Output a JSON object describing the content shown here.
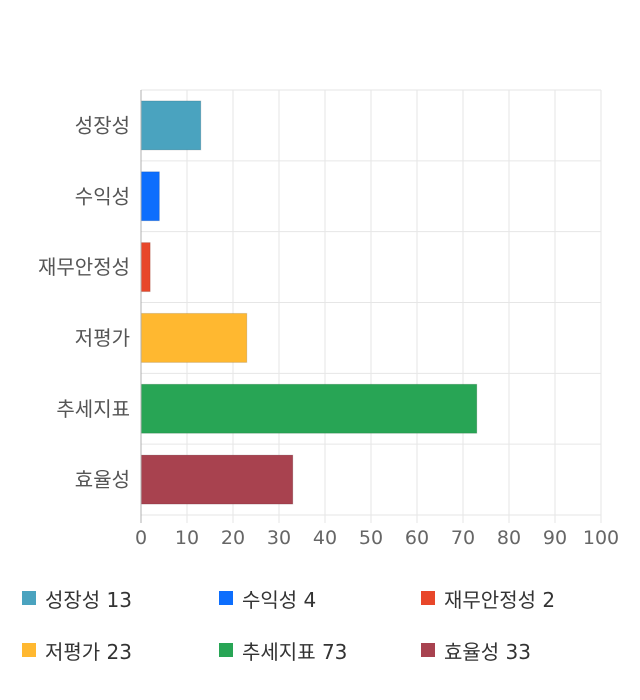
{
  "chart_data": {
    "type": "bar",
    "orientation": "horizontal",
    "categories": [
      "성장성",
      "수익성",
      "재무안정성",
      "저평가",
      "추세지표",
      "효율성"
    ],
    "values": [
      13,
      4,
      2,
      23,
      73,
      33
    ],
    "colors": [
      "#4aa3bf",
      "#0d6efd",
      "#e8472a",
      "#ffb830",
      "#28a555",
      "#a8424f"
    ],
    "xlim": [
      0,
      100
    ],
    "xticks": [
      0,
      10,
      20,
      30,
      40,
      50,
      60,
      70,
      80,
      90,
      100
    ],
    "grid": true,
    "legend_position": "bottom"
  },
  "legend": [
    {
      "label": "성장성 13",
      "color": "#4aa3bf"
    },
    {
      "label": "수익성 4",
      "color": "#0d6efd"
    },
    {
      "label": "재무안정성 2",
      "color": "#e8472a"
    },
    {
      "label": "저평가 23",
      "color": "#ffb830"
    },
    {
      "label": "추세지표 73",
      "color": "#28a555"
    },
    {
      "label": "효율성 33",
      "color": "#a8424f"
    }
  ]
}
